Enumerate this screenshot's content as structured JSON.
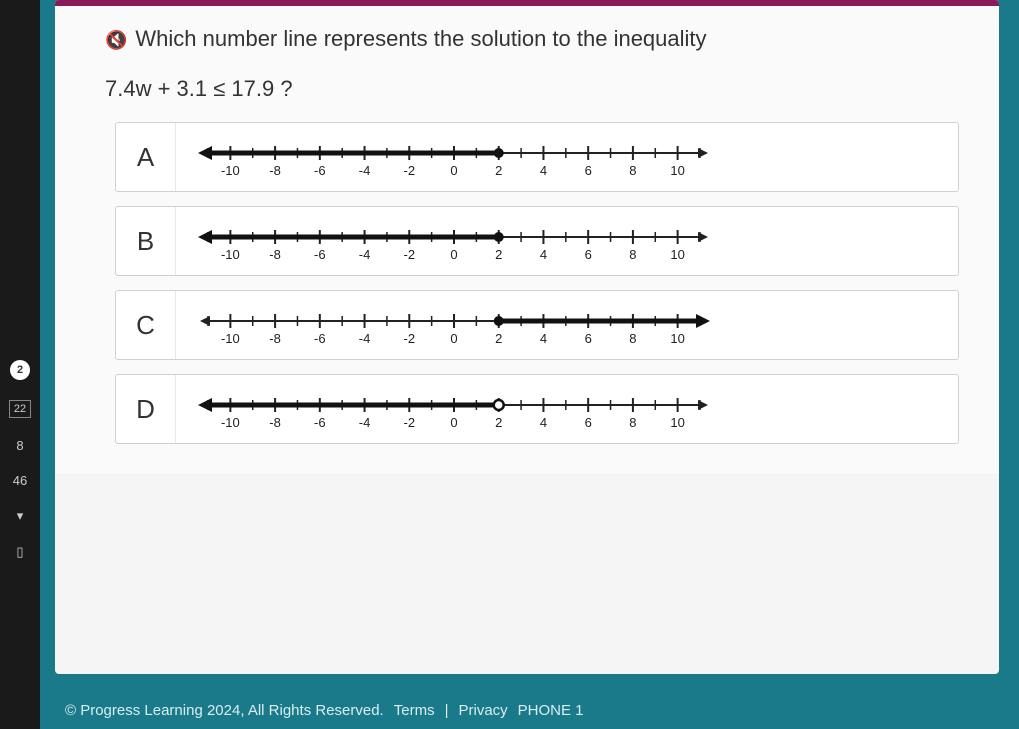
{
  "question": {
    "prompt": "Which number line represents the solution to the inequality",
    "expression": "7.4w + 3.1 ≤ 17.9 ?"
  },
  "numberline": {
    "min": -11,
    "max": 11,
    "major_ticks": [
      -10,
      -8,
      -6,
      -4,
      -2,
      0,
      2,
      4,
      6,
      8,
      10
    ],
    "minor_step": 1,
    "axis_color": "#222222",
    "tick_color": "#222222",
    "label_color": "#222222",
    "label_fontsize": 13,
    "shade_color": "#111111",
    "shade_thickness": 5,
    "point_radius": 5
  },
  "choices": [
    {
      "letter": "A",
      "point_at": 2,
      "point_filled": true,
      "shade_from": -11,
      "shade_to": 2,
      "arrow_left": true,
      "arrow_right": false
    },
    {
      "letter": "B",
      "point_at": 2,
      "point_filled": true,
      "shade_from": -11,
      "shade_to": 2,
      "arrow_left": true,
      "arrow_right": false
    },
    {
      "letter": "C",
      "point_at": 2,
      "point_filled": true,
      "shade_from": 2,
      "shade_to": 11,
      "arrow_left": false,
      "arrow_right": true
    },
    {
      "letter": "D",
      "point_at": 2,
      "point_filled": false,
      "shade_from": -11,
      "shade_to": 2,
      "arrow_left": true,
      "arrow_right": false
    }
  ],
  "sidebar": {
    "badge1": "2",
    "box1": "22",
    "num1": "8",
    "num2": "46"
  },
  "footer": {
    "copyright": "© Progress Learning 2024, All Rights Reserved.",
    "terms": "Terms",
    "privacy": "Privacy",
    "phone": "PHONE 1"
  },
  "colors": {
    "page_bg": "#1a7a8a",
    "panel_bg": "#fafafa",
    "accent_bar": "#8a1a5a"
  }
}
